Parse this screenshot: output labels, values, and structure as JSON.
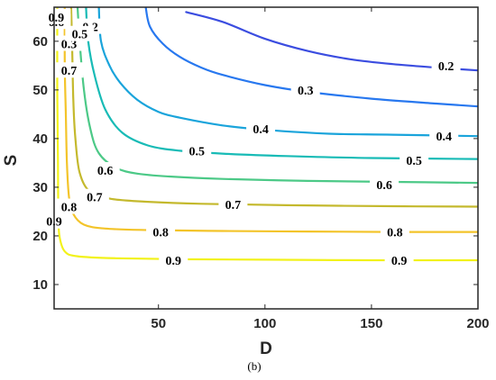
{
  "chart_data": {
    "type": "contour",
    "xlabel": "D",
    "ylabel": "S",
    "caption": "(b)",
    "xlim": [
      1,
      200
    ],
    "ylim": [
      5,
      67
    ],
    "xticks": [
      50,
      100,
      150,
      200
    ],
    "yticks": [
      10,
      20,
      30,
      40,
      50,
      60
    ],
    "grid": false,
    "levels": [
      {
        "value": "0.2",
        "color": "#3b4de0",
        "points": [
          [
            63,
            66
          ],
          [
            80,
            64
          ],
          [
            100,
            60.5
          ],
          [
            120,
            58
          ],
          [
            140,
            56.3
          ],
          [
            160,
            55.3
          ],
          [
            180,
            54.6
          ],
          [
            200,
            54
          ]
        ],
        "labels": [
          [
            18,
            63
          ],
          [
            185,
            55
          ]
        ]
      },
      {
        "value": "0.3",
        "color": "#2878ef",
        "points": [
          [
            44,
            67
          ],
          [
            46,
            63
          ],
          [
            52,
            59.5
          ],
          [
            60,
            56.8
          ],
          [
            70,
            54.6
          ],
          [
            80,
            53.1
          ],
          [
            100,
            51
          ],
          [
            120,
            49.6
          ],
          [
            150,
            48.2
          ],
          [
            180,
            47.2
          ],
          [
            200,
            46.6
          ]
        ],
        "labels": [
          [
            8,
            59.5
          ],
          [
            119,
            50
          ]
        ]
      },
      {
        "value": "0.4",
        "color": "#1aa4db",
        "points": [
          [
            22,
            67
          ],
          [
            23,
            60
          ],
          [
            27,
            55
          ],
          [
            32,
            51.5
          ],
          [
            40,
            48
          ],
          [
            50,
            45.5
          ],
          [
            60,
            44.3
          ],
          [
            80,
            42.7
          ],
          [
            100,
            41.8
          ],
          [
            130,
            41
          ],
          [
            160,
            40.8
          ],
          [
            200,
            40.5
          ]
        ],
        "labels": [
          [
            98,
            42
          ],
          [
            184,
            40.5
          ]
        ]
      },
      {
        "value": "0.5",
        "color": "#18bbb6",
        "points": [
          [
            16,
            67
          ],
          [
            17,
            60
          ],
          [
            20,
            53
          ],
          [
            25,
            46
          ],
          [
            33,
            41.2
          ],
          [
            45,
            38.6
          ],
          [
            60,
            37.5
          ],
          [
            80,
            36.9
          ],
          [
            110,
            36.4
          ],
          [
            150,
            36
          ],
          [
            200,
            35.8
          ]
        ],
        "labels": [
          [
            68,
            37.5
          ],
          [
            170,
            35.5
          ],
          [
            13,
            61.5
          ]
        ]
      },
      {
        "value": "0.6",
        "color": "#4cc987",
        "points": [
          [
            12,
            67
          ],
          [
            13,
            60
          ],
          [
            15,
            50
          ],
          [
            18,
            42
          ],
          [
            22,
            37
          ],
          [
            30,
            34
          ],
          [
            40,
            32.8
          ],
          [
            55,
            32.2
          ],
          [
            80,
            31.7
          ],
          [
            120,
            31.3
          ],
          [
            160,
            31.1
          ],
          [
            200,
            30.9
          ]
        ],
        "labels": [
          [
            25,
            33.5
          ],
          [
            156,
            30.5
          ],
          [
            2,
            64
          ]
        ]
      },
      {
        "value": "0.7",
        "color": "#c4b92d",
        "points": [
          [
            9,
            67
          ],
          [
            9.5,
            58
          ],
          [
            10,
            48
          ],
          [
            11,
            40
          ],
          [
            13,
            33
          ],
          [
            18,
            29
          ],
          [
            28,
            27.6
          ],
          [
            45,
            27
          ],
          [
            70,
            26.6
          ],
          [
            110,
            26.3
          ],
          [
            160,
            26.1
          ],
          [
            200,
            26
          ]
        ],
        "labels": [
          [
            8,
            54
          ],
          [
            20,
            28
          ],
          [
            85,
            26.5
          ]
        ]
      },
      {
        "value": "0.8",
        "color": "#f3c42a",
        "points": [
          [
            6,
            67
          ],
          [
            6,
            55
          ],
          [
            6.5,
            45
          ],
          [
            7,
            35
          ],
          [
            8,
            28
          ],
          [
            10,
            24.5
          ],
          [
            15,
            22.3
          ],
          [
            25,
            21.5
          ],
          [
            45,
            21.2
          ],
          [
            80,
            21
          ],
          [
            120,
            20.9
          ],
          [
            160,
            20.8
          ],
          [
            200,
            20.8
          ]
        ],
        "labels": [
          [
            8,
            26
          ],
          [
            51,
            20.8
          ],
          [
            161,
            20.8
          ]
        ]
      },
      {
        "value": "0.9",
        "color": "#f2f21a",
        "points": [
          [
            2.5,
            67
          ],
          [
            2.5,
            50
          ],
          [
            2.8,
            35
          ],
          [
            3,
            25
          ],
          [
            3.5,
            20
          ],
          [
            6,
            16.8
          ],
          [
            12,
            15.8
          ],
          [
            30,
            15.4
          ],
          [
            60,
            15.2
          ],
          [
            100,
            15.1
          ],
          [
            150,
            15
          ],
          [
            200,
            15
          ]
        ],
        "labels": [
          [
            2,
            65
          ],
          [
            1,
            23
          ],
          [
            57,
            15
          ],
          [
            163,
            15
          ]
        ]
      }
    ]
  }
}
